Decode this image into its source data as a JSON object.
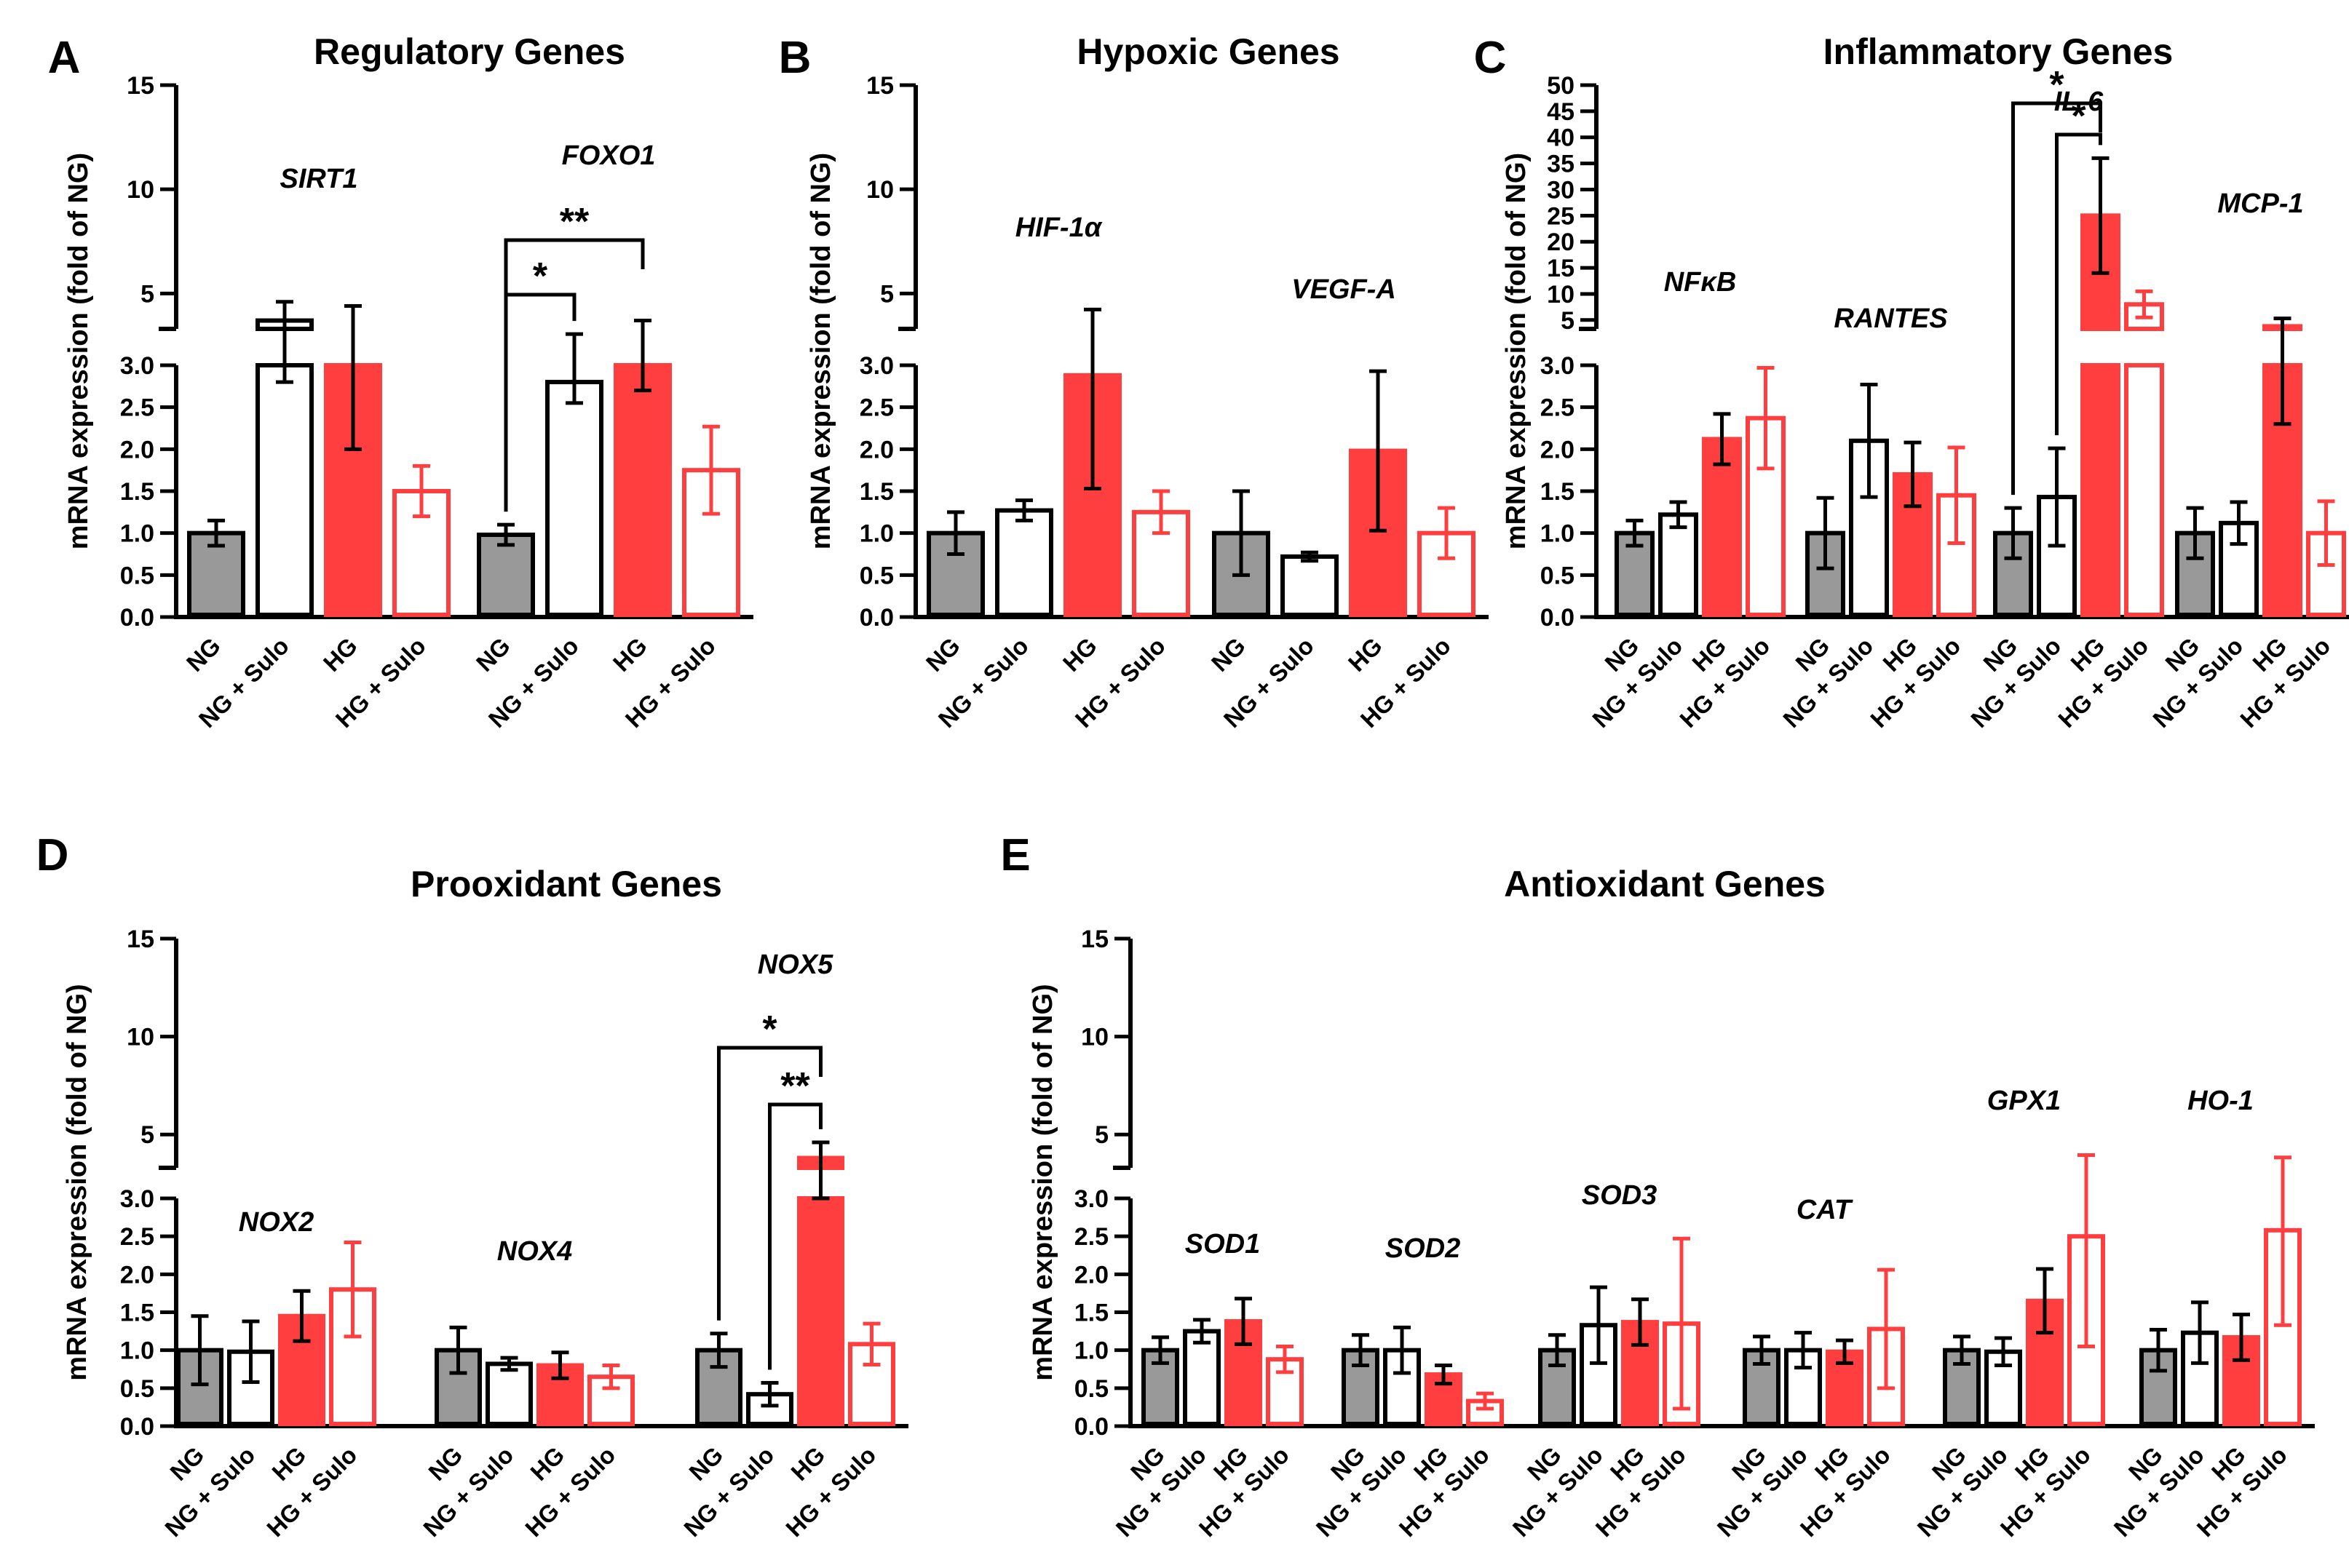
{
  "colors": {
    "ng": "#999999",
    "hg": "#ff3f3f",
    "axis": "#000000",
    "white": "#ffffff"
  },
  "group_labels": [
    "NG",
    "NG + Sulo",
    "HG",
    "HG + Sulo"
  ],
  "y_axis_label": "mRNA expression (fold of NG)",
  "chart_data": [
    {
      "type": "bar",
      "panel": "A",
      "title": "Regulatory Genes",
      "ylabel": "mRNA expression (fold of NG)",
      "ylim_lower": [
        0,
        3
      ],
      "ylim_upper": [
        3.3,
        15
      ],
      "yticks_lower": [
        "0.0",
        "0.5",
        "1.0",
        "1.5",
        "2.0",
        "2.5",
        "3.0"
      ],
      "yticks_upper": [
        "5",
        "10",
        "15"
      ],
      "categories": [
        "NG",
        "NG + Sulo",
        "HG",
        "HG + Sulo"
      ],
      "genes": [
        {
          "name": "SIRT1",
          "values": [
            1.0,
            3.7,
            3.2,
            1.5
          ],
          "errors": [
            0.15,
            0.9,
            1.2,
            0.3
          ]
        },
        {
          "name": "FOXO1",
          "values": [
            0.98,
            2.8,
            3.2,
            1.75
          ],
          "errors": [
            0.12,
            0.25,
            0.5,
            0.52
          ]
        }
      ],
      "significance": [
        {
          "gene": "FOXO1",
          "from": "NG",
          "to": "NG + Sulo",
          "label": "*"
        },
        {
          "gene": "FOXO1",
          "from": "NG",
          "to": "HG",
          "label": "**"
        }
      ]
    },
    {
      "type": "bar",
      "panel": "B",
      "title": "Hypoxic Genes",
      "ylabel": "mRNA expression (fold of NG)",
      "ylim_lower": [
        0,
        3
      ],
      "ylim_upper": [
        3.3,
        15
      ],
      "yticks_lower": [
        "0.0",
        "0.5",
        "1.0",
        "1.5",
        "2.0",
        "2.5",
        "3.0"
      ],
      "yticks_upper": [
        "5",
        "10",
        "15"
      ],
      "categories": [
        "NG",
        "NG + Sulo",
        "HG",
        "HG + Sulo"
      ],
      "genes": [
        {
          "name": "HIF-1α",
          "values": [
            1.0,
            1.27,
            2.88,
            1.25
          ],
          "errors": [
            0.25,
            0.12,
            1.35,
            0.25
          ]
        },
        {
          "name": "VEGF-A",
          "values": [
            1.0,
            0.72,
            1.98,
            1.0
          ],
          "errors": [
            0.5,
            0.05,
            0.95,
            0.3
          ]
        }
      ],
      "significance": []
    },
    {
      "type": "bar",
      "panel": "C",
      "title": "Inflammatory Genes",
      "ylabel": "mRNA expression (fold of NG)",
      "ylim_lower": [
        0,
        3
      ],
      "ylim_upper": [
        3.3,
        50
      ],
      "yticks_lower": [
        "0.0",
        "0.5",
        "1.0",
        "1.5",
        "2.0",
        "2.5",
        "3.0"
      ],
      "yticks_upper": [
        "5",
        "10",
        "15",
        "20",
        "25",
        "30",
        "35",
        "40",
        "45",
        "50"
      ],
      "categories": [
        "NG",
        "NG + Sulo",
        "HG",
        "HG + Sulo"
      ],
      "genes": [
        {
          "name": "NFκB",
          "values": [
            1.0,
            1.22,
            2.12,
            2.37
          ],
          "errors": [
            0.15,
            0.15,
            0.3,
            0.6
          ]
        },
        {
          "name": "RANTES",
          "values": [
            1.0,
            2.1,
            1.7,
            1.45
          ],
          "errors": [
            0.42,
            0.67,
            0.38,
            0.57
          ]
        },
        {
          "name": "IL-6",
          "values": [
            1.0,
            1.43,
            25.0,
            8.0
          ],
          "errors": [
            0.3,
            0.58,
            11.0,
            2.5
          ]
        },
        {
          "name": "MCP-1",
          "values": [
            1.0,
            1.12,
            3.8,
            1.0
          ],
          "errors": [
            0.3,
            0.25,
            1.5,
            0.38
          ]
        }
      ],
      "significance": [
        {
          "gene": "IL-6",
          "from": "NG",
          "to": "HG",
          "label": "*"
        },
        {
          "gene": "IL-6",
          "from": "NG + Sulo",
          "to": "HG",
          "label": "*"
        }
      ]
    },
    {
      "type": "bar",
      "panel": "D",
      "title": "Prooxidant Genes",
      "ylabel": "mRNA expression (fold of NG)",
      "ylim_lower": [
        0,
        3
      ],
      "ylim_upper": [
        3.3,
        15
      ],
      "yticks_lower": [
        "0.0",
        "0.5",
        "1.0",
        "1.5",
        "2.0",
        "2.5",
        "3.0"
      ],
      "yticks_upper": [
        "5",
        "10",
        "15"
      ],
      "categories": [
        "NG",
        "NG + Sulo",
        "HG",
        "HG + Sulo"
      ],
      "genes": [
        {
          "name": "NOX2",
          "values": [
            1.0,
            0.98,
            1.45,
            1.8
          ],
          "errors": [
            0.45,
            0.4,
            0.33,
            0.62
          ]
        },
        {
          "name": "NOX4",
          "values": [
            1.0,
            0.82,
            0.8,
            0.65
          ],
          "errors": [
            0.3,
            0.08,
            0.17,
            0.15
          ]
        },
        {
          "name": "NOX5",
          "values": [
            1.0,
            0.42,
            3.8,
            1.08
          ],
          "errors": [
            0.22,
            0.15,
            0.8,
            0.27
          ]
        }
      ],
      "significance": [
        {
          "gene": "NOX5",
          "from": "NG",
          "to": "HG",
          "label": "*"
        },
        {
          "gene": "NOX5",
          "from": "NG + Sulo",
          "to": "HG",
          "label": "**"
        }
      ]
    },
    {
      "type": "bar",
      "panel": "E",
      "title": "Antioxidant Genes",
      "ylabel": "mRNA expression (fold of NG)",
      "ylim_lower": [
        0,
        3
      ],
      "ylim_upper": [
        3.3,
        15
      ],
      "yticks_lower": [
        "0.0",
        "0.5",
        "1.0",
        "1.5",
        "2.0",
        "2.5",
        "3.0"
      ],
      "yticks_upper": [
        "5",
        "10",
        "15"
      ],
      "categories": [
        "NG",
        "NG + Sulo",
        "HG",
        "HG + Sulo"
      ],
      "genes": [
        {
          "name": "SOD1",
          "values": [
            1.0,
            1.25,
            1.38,
            0.88
          ],
          "errors": [
            0.17,
            0.15,
            0.3,
            0.17
          ]
        },
        {
          "name": "SOD2",
          "values": [
            1.0,
            1.0,
            0.68,
            0.33
          ],
          "errors": [
            0.2,
            0.3,
            0.12,
            0.1
          ]
        },
        {
          "name": "SOD3",
          "values": [
            1.0,
            1.33,
            1.37,
            1.35
          ],
          "errors": [
            0.2,
            0.5,
            0.3,
            1.12
          ]
        },
        {
          "name": "CAT",
          "values": [
            1.0,
            1.0,
            0.98,
            1.28
          ],
          "errors": [
            0.18,
            0.23,
            0.15,
            0.78
          ]
        },
        {
          "name": "GPX1",
          "values": [
            1.0,
            0.98,
            1.65,
            2.5
          ],
          "errors": [
            0.18,
            0.18,
            0.42,
            1.45
          ]
        },
        {
          "name": "HO-1",
          "values": [
            1.0,
            1.23,
            1.17,
            2.58
          ],
          "errors": [
            0.27,
            0.4,
            0.3,
            1.25
          ]
        }
      ],
      "significance": []
    }
  ]
}
